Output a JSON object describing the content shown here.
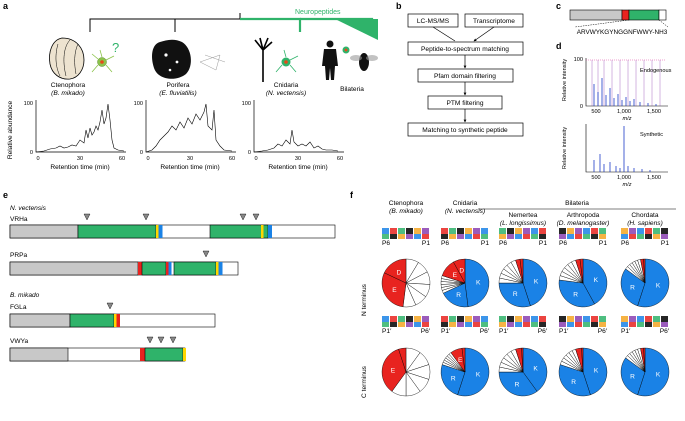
{
  "panel_labels": {
    "a": "a",
    "b": "b",
    "c": "c",
    "d": "d",
    "e": "e",
    "f": "f"
  },
  "panel_a": {
    "neuropeptides_label": "Neuropeptides",
    "taxa": [
      {
        "name": "Ctenophora",
        "species": "B. mikado"
      },
      {
        "name": "Porifera",
        "species": "E. fluviatilis"
      },
      {
        "name": "Cnidaria",
        "species": "N. vectensis"
      },
      {
        "name": "Bilateria",
        "species": ""
      }
    ],
    "question_mark": "?",
    "ylabel": "Relative abundance",
    "xlabel": "Retention time (min)",
    "y_ticks": [
      "100",
      "0"
    ],
    "x_ticks": [
      "0",
      "30",
      "60"
    ]
  },
  "panel_b": {
    "inputs": [
      "LC-MS/MS",
      "Transcriptome"
    ],
    "steps": [
      "Peptide-to-spectrum matching",
      "Pfam domain filtering",
      "PTM filtering",
      "Matching to synthetic peptide"
    ]
  },
  "panel_c": {
    "sequence": "ARVWYKGYNGGNFWWY-NH3"
  },
  "panel_d": {
    "ylabel": "Relative intensity",
    "xlabel": "m/z",
    "y_ticks": [
      "100",
      "0"
    ],
    "x_ticks": [
      "500",
      "1,000",
      "1,500"
    ],
    "top_label": "Endogenous",
    "bottom_label": "Synthetic"
  },
  "panel_e": {
    "groups": [
      {
        "species": "N. vectensis",
        "proteins": [
          "VRHa",
          "PRPa"
        ]
      },
      {
        "species": "B. mikado",
        "proteins": [
          "FGLa",
          "VWYa"
        ]
      }
    ]
  },
  "panel_f": {
    "bilateria_label": "Bilateria",
    "columns": [
      {
        "phylum": "Ctenophora",
        "species": "B. mikado"
      },
      {
        "phylum": "Cnidaria",
        "species": "N. vectensis"
      },
      {
        "phylum": "Nemertea",
        "species": "L. longissimus"
      },
      {
        "phylum": "Arthropoda",
        "species": "D. melanogaster"
      },
      {
        "phylum": "Chordata",
        "species": "H. sapiens"
      }
    ],
    "n_terminus_label": "N terminus",
    "c_terminus_label": "C terminus",
    "n_positions": [
      "P6",
      "P1"
    ],
    "c_positions": [
      "P1′",
      "P6′"
    ],
    "slice_labels": [
      "E",
      "D",
      "K",
      "R"
    ],
    "colors": {
      "basic": "#1a82e6",
      "acidic": "#e8231f",
      "other": "#ffffff"
    },
    "chart_data": [
      {
        "type": "pie",
        "name": "N terminus",
        "values_by_column": [
          {
            "K": 0,
            "R": 0,
            "E": 30,
            "D": 18,
            "other": 52
          },
          {
            "K": 48,
            "R": 20,
            "E": 12,
            "D": 8,
            "other": 12
          },
          {
            "K": 45,
            "R": 30,
            "E": 3,
            "D": 2,
            "other": 20
          },
          {
            "K": 42,
            "R": 35,
            "E": 3,
            "D": 2,
            "other": 18
          },
          {
            "K": 55,
            "R": 30,
            "E": 2,
            "D": 1,
            "other": 12
          }
        ]
      },
      {
        "type": "pie",
        "name": "C terminus",
        "values_by_column": [
          {
            "K": 0,
            "R": 0,
            "E": 35,
            "D": 5,
            "other": 60
          },
          {
            "K": 55,
            "R": 25,
            "E": 8,
            "D": 2,
            "other": 10
          },
          {
            "K": 40,
            "R": 35,
            "E": 4,
            "D": 1,
            "other": 20
          },
          {
            "K": 45,
            "R": 35,
            "E": 4,
            "D": 1,
            "other": 15
          },
          {
            "K": 55,
            "R": 30,
            "E": 2,
            "D": 1,
            "other": 12
          }
        ]
      }
    ]
  }
}
